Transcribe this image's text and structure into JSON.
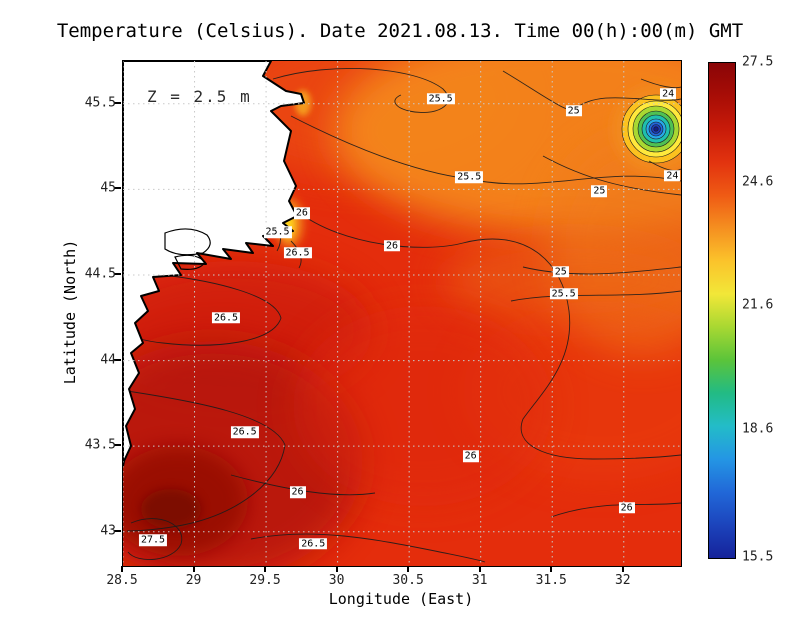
{
  "chart_data": {
    "type": "heatmap",
    "title": "Temperature (Celsius). Date 2021.08.13. Time 00(h):00(m) GMT",
    "variable": "Temperature",
    "units": "Celsius",
    "date": "2021.08.13",
    "time": "00(h):00(m) GMT",
    "depth_annotation": "Z = 2.5 m",
    "xlabel": "Longitude (East)",
    "ylabel": "Latitude (North)",
    "xlim": [
      28.5,
      32.4
    ],
    "ylim": [
      42.8,
      45.75
    ],
    "x_ticks": [
      28.5,
      29,
      29.5,
      30,
      30.5,
      31,
      31.5,
      32
    ],
    "y_ticks": [
      43,
      43.5,
      44,
      44.5,
      45,
      45.5
    ],
    "grid": true,
    "colorbar": {
      "min": 15.5,
      "max": 27.5,
      "tick_labels": [
        27.5,
        24.6,
        21.6,
        18.6,
        15.5
      ],
      "colors_top_to_bottom": [
        "#8a0507",
        "#a80d06",
        "#c81b09",
        "#e2330f",
        "#ef5a14",
        "#f58f20",
        "#fbc32b",
        "#f2e738",
        "#a8d832",
        "#5bc43a",
        "#22bb84",
        "#23bcc8",
        "#2496e4",
        "#2168d8",
        "#1c44bc",
        "#15239a"
      ]
    },
    "contour_labels": [
      {
        "value": "25.5",
        "lon": 30.72,
        "lat": 45.53
      },
      {
        "value": "25",
        "lon": 31.65,
        "lat": 45.46
      },
      {
        "value": "24",
        "lon": 32.31,
        "lat": 45.56
      },
      {
        "value": "25.5",
        "lon": 30.92,
        "lat": 45.07
      },
      {
        "value": "25",
        "lon": 31.83,
        "lat": 44.99
      },
      {
        "value": "24",
        "lon": 32.34,
        "lat": 45.08
      },
      {
        "value": "26",
        "lon": 29.75,
        "lat": 44.86
      },
      {
        "value": "25.5",
        "lon": 29.58,
        "lat": 44.75
      },
      {
        "value": "26.5",
        "lon": 29.72,
        "lat": 44.63
      },
      {
        "value": "26",
        "lon": 30.38,
        "lat": 44.67
      },
      {
        "value": "25",
        "lon": 31.56,
        "lat": 44.52
      },
      {
        "value": "25.5",
        "lon": 31.58,
        "lat": 44.39
      },
      {
        "value": "26.5",
        "lon": 29.22,
        "lat": 44.25
      },
      {
        "value": "26.5",
        "lon": 29.35,
        "lat": 43.58
      },
      {
        "value": "26",
        "lon": 30.93,
        "lat": 43.44
      },
      {
        "value": "26",
        "lon": 29.72,
        "lat": 43.23
      },
      {
        "value": "26",
        "lon": 32.02,
        "lat": 43.14
      },
      {
        "value": "27.5",
        "lon": 28.71,
        "lat": 42.95
      },
      {
        "value": "26.5",
        "lon": 29.83,
        "lat": 42.93
      }
    ]
  }
}
